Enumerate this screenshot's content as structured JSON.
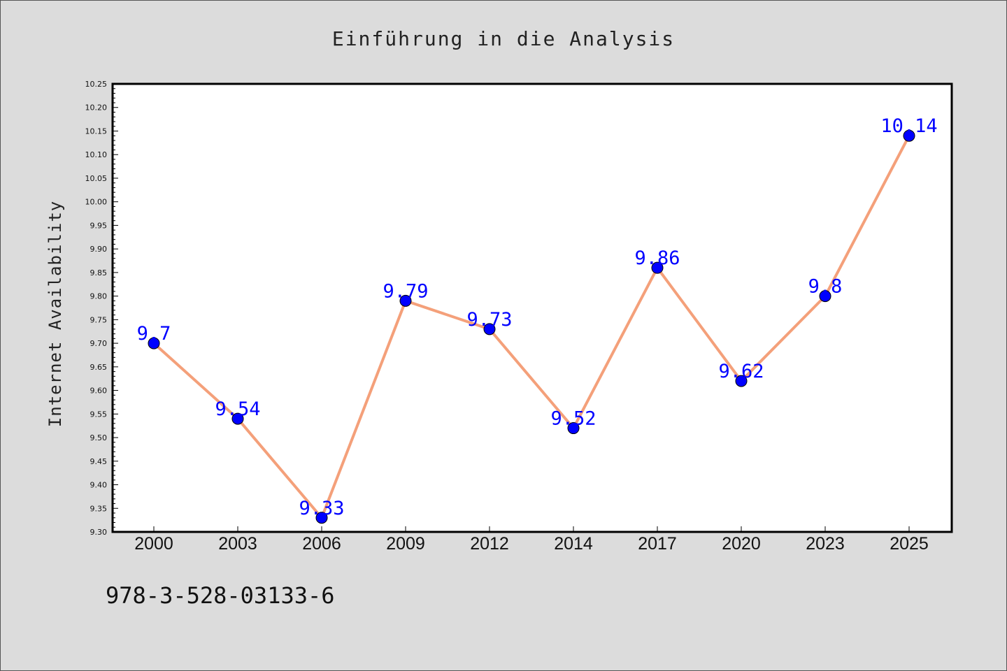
{
  "footer": {
    "code": "978-3-528-03133-6"
  },
  "chart_data": {
    "type": "line",
    "title": "Einführung in die Analysis",
    "xlabel": "",
    "ylabel": "Internet Availability",
    "categories": [
      "2000",
      "2003",
      "2006",
      "2009",
      "2012",
      "2014",
      "2017",
      "2020",
      "2023",
      "2025"
    ],
    "series": [
      {
        "values": [
          9.7,
          9.54,
          9.33,
          9.79,
          9.73,
          9.52,
          9.86,
          9.62,
          9.8,
          10.14
        ],
        "labels": [
          "9.7",
          "9.54",
          "9.33",
          "9.79",
          "9.73",
          "9.52",
          "9.86",
          "9.62",
          "9.8",
          "10.14"
        ]
      }
    ],
    "ylim": [
      9.3,
      10.25
    ],
    "yticks": [
      "9.30",
      "9.35",
      "9.40",
      "9.45",
      "9.50",
      "9.55",
      "9.60",
      "9.65",
      "9.70",
      "9.75",
      "9.80",
      "9.85",
      "9.90",
      "9.95",
      "10.00",
      "10.05",
      "10.10",
      "10.15",
      "10.20",
      "10.25"
    ],
    "grid": false,
    "legend": "none",
    "colors": {
      "background": "#dcdcdc",
      "plot_background": "#ffffff",
      "line": "#f4a07a",
      "marker": "#0000ff",
      "point_label": "#0000ff"
    }
  }
}
